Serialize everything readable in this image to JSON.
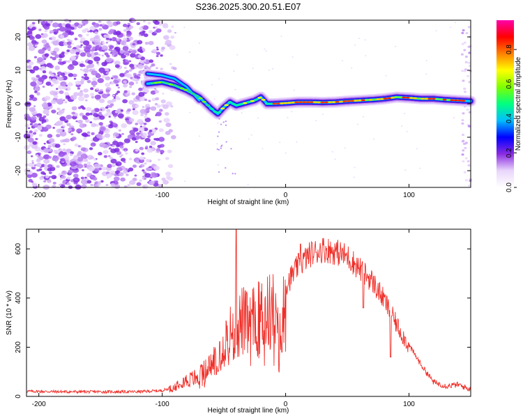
{
  "title": "S236.2025.300.20.51.E07",
  "chart_data": [
    {
      "type": "heatmap",
      "name": "spectrogram",
      "xlabel": "Height of straight line (km)",
      "ylabel": "Frequency (Hz)",
      "xlim": [
        -210,
        150
      ],
      "ylim": [
        -25,
        25
      ],
      "xticks": [
        -200,
        -100,
        0,
        100
      ],
      "yticks": [
        -20,
        -10,
        0,
        10,
        20
      ],
      "ridge": {
        "x": [
          -112,
          -100,
          -90,
          -80,
          -70,
          -60,
          -55,
          -50,
          -45,
          -40,
          -35,
          -30,
          -25,
          -20,
          -15,
          -10,
          0,
          10,
          20,
          30,
          40,
          50,
          60,
          70,
          80,
          90,
          100,
          110,
          120,
          130,
          140,
          150
        ],
        "y": [
          6,
          6.5,
          5.5,
          4,
          2,
          -1.5,
          -3,
          -1,
          0.5,
          -0.5,
          0,
          0.5,
          1,
          2,
          0,
          0,
          0.2,
          0.5,
          0.5,
          0.4,
          0.5,
          0.8,
          1,
          1.2,
          1.5,
          2,
          1.8,
          1.5,
          1.5,
          1.2,
          1,
          0.8
        ]
      },
      "colorbar": {
        "label": "Normalized spectral amplitude",
        "ticks": [
          "0.0",
          "0.2",
          "0.4",
          "0.6",
          "0.8"
        ],
        "range": [
          0,
          0.97
        ],
        "colors": [
          "#ffffff",
          "#e9d6fb",
          "#8a2be2",
          "#0000ff",
          "#00bfff",
          "#00ff80",
          "#7fff00",
          "#ffff00",
          "#ff8000",
          "#ff0000",
          "#ff00aa"
        ]
      }
    },
    {
      "type": "line",
      "name": "snr",
      "xlabel": "Height of straight line (km)",
      "ylabel": "SNR (10 * v/v)",
      "xlim": [
        -210,
        150
      ],
      "ylim": [
        0,
        680
      ],
      "xticks": [
        -200,
        -100,
        0,
        100
      ],
      "yticks": [
        0,
        200,
        400,
        600
      ],
      "line_color": "#f0302a",
      "envelope": {
        "x": [
          -210,
          -180,
          -150,
          -120,
          -100,
          -90,
          -85,
          -80,
          -70,
          -60,
          -50,
          -45,
          -40,
          -35,
          -30,
          -20,
          -10,
          -5,
          0,
          10,
          20,
          30,
          40,
          50,
          60,
          70,
          80,
          90,
          100,
          110,
          120,
          130,
          140,
          150
        ],
        "y": [
          22,
          20,
          20,
          20,
          25,
          40,
          75,
          70,
          90,
          140,
          240,
          280,
          300,
          340,
          310,
          360,
          380,
          240,
          460,
          540,
          590,
          610,
          600,
          580,
          530,
          480,
          400,
          300,
          210,
          130,
          60,
          45,
          50,
          30
        ]
      },
      "spikes": [
        {
          "x": -40,
          "y": 680
        },
        {
          "x": 12,
          "y": 620
        },
        {
          "x": 63,
          "y": 360
        },
        {
          "x": 85,
          "y": 160
        },
        {
          "x": -3,
          "y": 180
        }
      ]
    }
  ]
}
